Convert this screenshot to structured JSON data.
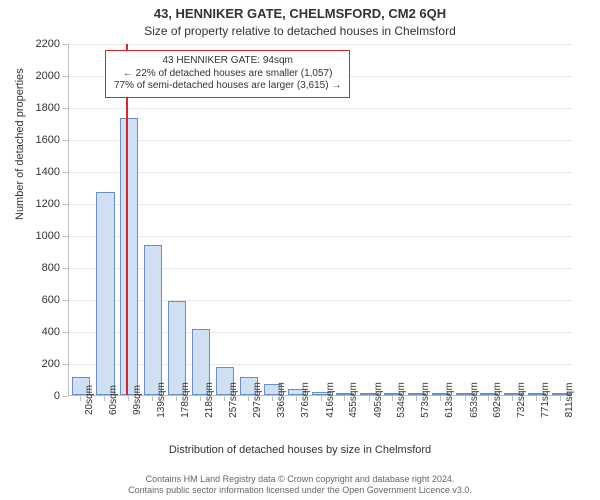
{
  "title_line1": "43, HENNIKER GATE, CHELMSFORD, CM2 6QH",
  "title_line2": "Size of property relative to detached houses in Chelmsford",
  "y_axis_label": "Number of detached properties",
  "x_axis_label": "Distribution of detached houses by size in Chelmsford",
  "attribution_line1": "Contains HM Land Registry data © Crown copyright and database right 2024.",
  "attribution_line2": "Contains public sector information licensed under the Open Government Licence v3.0.",
  "info_box": {
    "line1": "43 HENNIKER GATE: 94sqm",
    "line2": "← 22% of detached houses are smaller (1,057)",
    "line3": "77% of semi-detached houses are larger (3,615) →"
  },
  "chart": {
    "type": "bar",
    "ylim": [
      0,
      2200
    ],
    "ytick_step": 200,
    "x_ticks": [
      "20sqm",
      "60sqm",
      "99sqm",
      "139sqm",
      "178sqm",
      "218sqm",
      "257sqm",
      "297sqm",
      "336sqm",
      "376sqm",
      "416sqm",
      "455sqm",
      "495sqm",
      "534sqm",
      "573sqm",
      "613sqm",
      "653sqm",
      "692sqm",
      "732sqm",
      "771sqm",
      "811sqm"
    ],
    "bar_centers": [
      20,
      60,
      99,
      139,
      178,
      218,
      257,
      297,
      336,
      376,
      416,
      455,
      495,
      534,
      573,
      613,
      653,
      692,
      732,
      771,
      811
    ],
    "values": [
      110,
      1270,
      1730,
      935,
      590,
      410,
      175,
      110,
      70,
      40,
      20,
      15,
      10,
      8,
      6,
      5,
      4,
      3,
      2,
      2,
      1
    ],
    "x_domain": [
      0,
      830
    ],
    "bar_width_units": 30,
    "bar_fill": "#cfe0f5",
    "bar_stroke": "#6a8fc5",
    "grid_color": "#e6e6e6",
    "axis_color": "#bfbfbf",
    "marker_x": 94,
    "marker_color": "#d62728",
    "background_color": "#ffffff",
    "font_family": "Arial",
    "title_fontsize": 13,
    "subtitle_fontsize": 12,
    "axis_label_fontsize": 11,
    "tick_label_fontsize": 10
  }
}
